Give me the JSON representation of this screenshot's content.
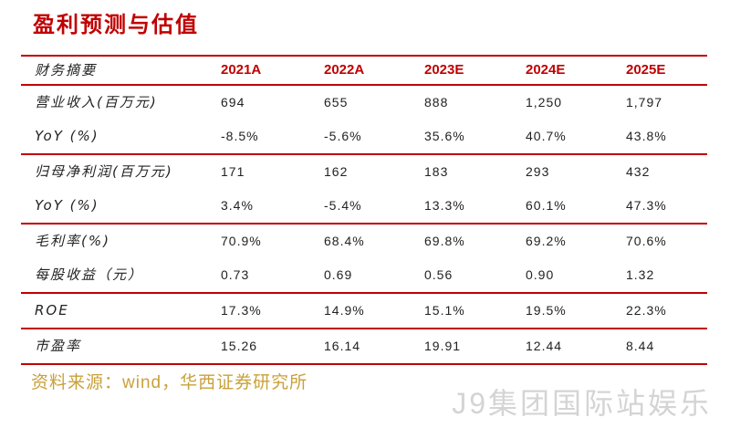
{
  "title": "盈利预测与估值",
  "table": {
    "header": {
      "label": "财务摘要",
      "years": [
        "2021A",
        "2022A",
        "2023E",
        "2024E",
        "2025E"
      ]
    },
    "groups": [
      {
        "rows": [
          {
            "label": "营业收入(百万元)",
            "values": [
              "694",
              "655",
              "888",
              "1,250",
              "1,797"
            ]
          },
          {
            "label": "YoY (%)",
            "values": [
              "-8.5%",
              "-5.6%",
              "35.6%",
              "40.7%",
              "43.8%"
            ]
          }
        ]
      },
      {
        "rows": [
          {
            "label": "归母净利润(百万元)",
            "values": [
              "171",
              "162",
              "183",
              "293",
              "432"
            ]
          },
          {
            "label": "YoY (%)",
            "values": [
              "3.4%",
              "-5.4%",
              "13.3%",
              "60.1%",
              "47.3%"
            ]
          }
        ]
      },
      {
        "rows": [
          {
            "label": "毛利率(%)",
            "values": [
              "70.9%",
              "68.4%",
              "69.8%",
              "69.2%",
              "70.6%"
            ]
          },
          {
            "label": "每股收益（元）",
            "values": [
              "0.73",
              "0.69",
              "0.56",
              "0.90",
              "1.32"
            ]
          }
        ]
      },
      {
        "rows": [
          {
            "label": "ROE",
            "values": [
              "17.3%",
              "14.9%",
              "15.1%",
              "19.5%",
              "22.3%"
            ]
          }
        ]
      },
      {
        "rows": [
          {
            "label": "市盈率",
            "values": [
              "15.26",
              "16.14",
              "19.91",
              "12.44",
              "8.44"
            ]
          }
        ]
      }
    ]
  },
  "source": "资料来源：wind，华西证券研究所",
  "watermark": "J9集团国际站娱乐",
  "colors": {
    "accent": "#c00000",
    "source": "#c9a13b",
    "watermark": "#d4d4d4",
    "text": "#222222"
  }
}
